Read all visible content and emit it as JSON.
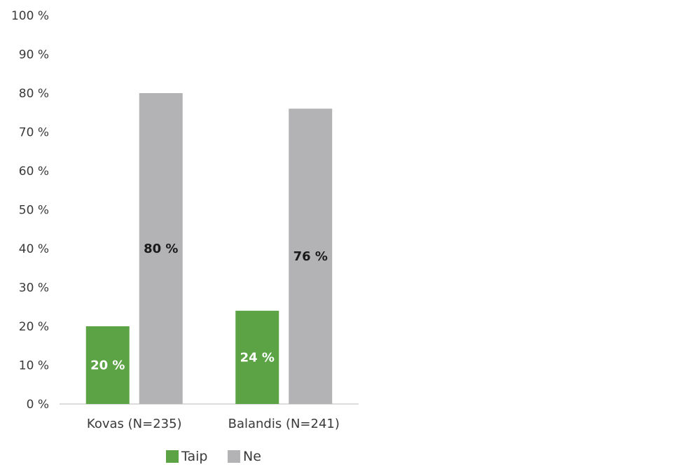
{
  "chart_data": {
    "type": "bar",
    "categories": [
      "Kovas (N=235)",
      "Balandis (N=241)"
    ],
    "series": [
      {
        "name": "Taip",
        "values": [
          20,
          24
        ],
        "labels": [
          "20 %",
          "24 %"
        ],
        "color": "#5ba345",
        "label_color": "#ffffff"
      },
      {
        "name": "Ne",
        "values": [
          80,
          76
        ],
        "labels": [
          "80 %",
          "76 %"
        ],
        "color": "#b3b3b5",
        "label_color": "#1a1a1a"
      }
    ],
    "ylim": [
      0,
      100
    ],
    "yticks": [
      0,
      10,
      20,
      30,
      40,
      50,
      60,
      70,
      80,
      90,
      100
    ],
    "ytick_labels": [
      "0 %",
      "10 %",
      "20 %",
      "30 %",
      "40 %",
      "50 %",
      "60 %",
      "70 %",
      "80 %",
      "90 %",
      "100 %"
    ],
    "grid": false,
    "legend_position": "bottom"
  }
}
